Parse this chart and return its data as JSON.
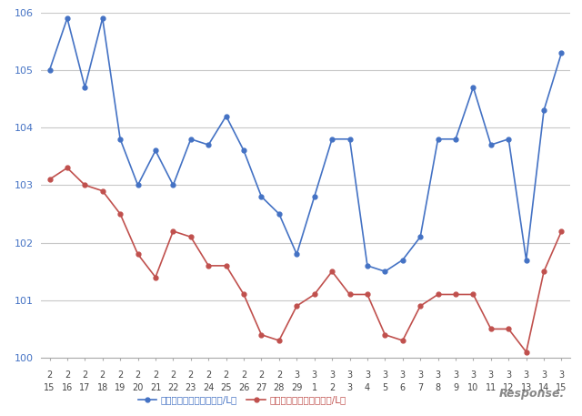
{
  "x_labels_row1": [
    "2",
    "2",
    "2",
    "2",
    "2",
    "2",
    "2",
    "2",
    "2",
    "2",
    "2",
    "2",
    "2",
    "2",
    "3",
    "3",
    "3",
    "3",
    "3",
    "3",
    "3",
    "3",
    "3",
    "3",
    "3",
    "3",
    "3",
    "3",
    "3",
    "3"
  ],
  "x_labels_row2": [
    "15",
    "16",
    "17",
    "18",
    "19",
    "20",
    "21",
    "22",
    "23",
    "24",
    "25",
    "26",
    "27",
    "28",
    "29",
    "1",
    "2",
    "3",
    "4",
    "5",
    "6",
    "7",
    "8",
    "9",
    "10",
    "11",
    "12",
    "13",
    "14",
    "15"
  ],
  "blue_values": [
    105.0,
    105.9,
    104.7,
    105.9,
    103.8,
    103.0,
    103.6,
    103.0,
    103.8,
    103.7,
    104.2,
    103.6,
    102.8,
    102.5,
    101.8,
    102.8,
    103.8,
    103.8,
    101.6,
    101.5,
    101.7,
    102.1,
    103.8,
    103.8,
    104.7,
    103.7,
    103.8,
    101.7,
    104.3,
    105.3
  ],
  "red_values": [
    103.1,
    103.3,
    103.0,
    102.9,
    102.5,
    101.8,
    101.4,
    102.2,
    102.1,
    101.6,
    101.6,
    101.1,
    100.4,
    100.3,
    100.9,
    101.1,
    101.5,
    101.1,
    101.1,
    100.4,
    100.3,
    100.9,
    101.1,
    101.1,
    101.1,
    100.5,
    100.5,
    100.1,
    101.5,
    102.2
  ],
  "ylim_min": 100,
  "ylim_max": 106,
  "yticks": [
    100,
    101,
    102,
    103,
    104,
    105,
    106
  ],
  "blue_label": "レギュラー看板価格（円/L）",
  "red_label": "レギュラー実売価格（円/L）",
  "blue_color": "#4472c4",
  "red_color": "#c0504d",
  "background_color": "#ffffff",
  "grid_color": "#c8c8c8",
  "watermark": "Response.",
  "tick_label_color": "#4472c4",
  "axis_color": "#aaaaaa"
}
